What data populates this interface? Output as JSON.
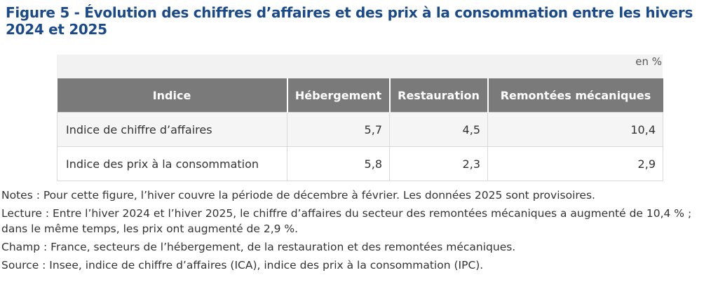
{
  "figure": {
    "title": "Figure 5 - Évolution des chiffres d’affaires et des prix à la consommation entre les hivers 2024 et 2025"
  },
  "table": {
    "unit": "en %",
    "headers": [
      "Indice",
      "Hébergement",
      "Restauration",
      "Remontées mécaniques"
    ],
    "rows": [
      {
        "label": "Indice de chiffre d’affaires",
        "values": [
          "5,7",
          "4,5",
          "10,4"
        ]
      },
      {
        "label": "Indice des prix à la consommation",
        "values": [
          "5,8",
          "2,3",
          "2,9"
        ]
      }
    ]
  },
  "notes": [
    "Notes : Pour cette figure, l’hiver couvre la période de décembre à février. Les données 2025 sont provisoires.",
    "Lecture : Entre l’hiver 2024 et l’hiver 2025, le chiffre d’affaires du secteur des remontées mécaniques a augmenté de 10,4 % ; dans le même temps, les prix ont augmenté de 2,9 %.",
    "Champ : France, secteurs de l’hébergement, de la restauration et des remontées mécaniques.",
    "Source : Insee, indice de chiffre d’affaires (ICA), indice des prix à la consommation (IPC)."
  ]
}
